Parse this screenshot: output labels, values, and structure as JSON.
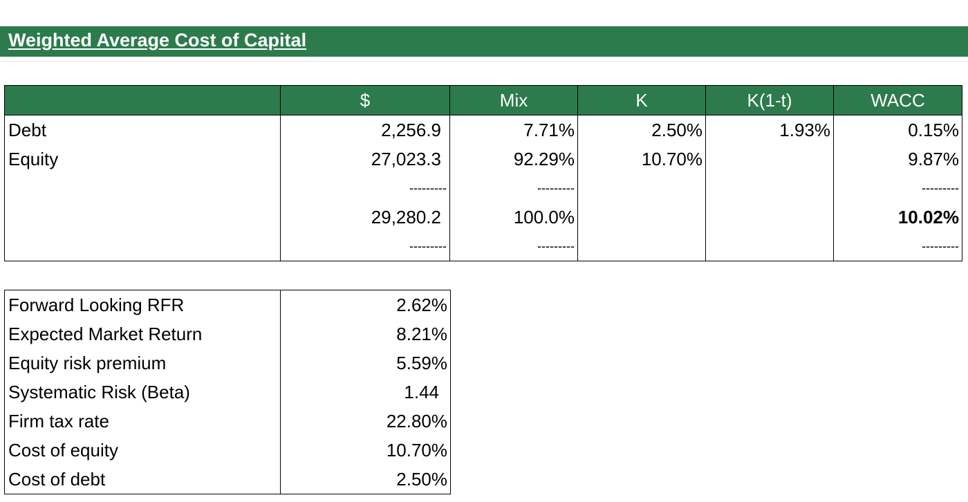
{
  "title": "Weighted Average Cost of Capital",
  "colors": {
    "header_green": "#2d7b4c",
    "header_text": "#ffffff"
  },
  "wacc_table": {
    "headers": [
      "",
      "$",
      "Mix",
      "K",
      "K(1-t)",
      "WACC"
    ],
    "rows": [
      {
        "label": "Debt",
        "dollar": "2,256.9",
        "mix": "7.71%",
        "k": "2.50%",
        "k_after_tax": "1.93%",
        "wacc": "0.15%"
      },
      {
        "label": "Equity",
        "dollar": "27,023.3",
        "mix": "92.29%",
        "k": "10.70%",
        "k_after_tax": "",
        "wacc": "9.87%"
      }
    ],
    "separator": "---------",
    "total": {
      "dollar": "29,280.2",
      "mix": "100.0%",
      "wacc": "10.02%"
    }
  },
  "inputs": [
    {
      "label": "Forward Looking RFR",
      "value": "2.62%"
    },
    {
      "label": "Expected Market Return",
      "value": "8.21%"
    },
    {
      "label": "Equity risk premium",
      "value": "5.59%"
    },
    {
      "label": "Systematic Risk (Beta)",
      "value": "1.44"
    },
    {
      "label": "Firm tax rate",
      "value": "22.80%"
    },
    {
      "label": "Cost of equity",
      "value": "10.70%"
    },
    {
      "label": "Cost of debt",
      "value": "2.50%"
    }
  ]
}
